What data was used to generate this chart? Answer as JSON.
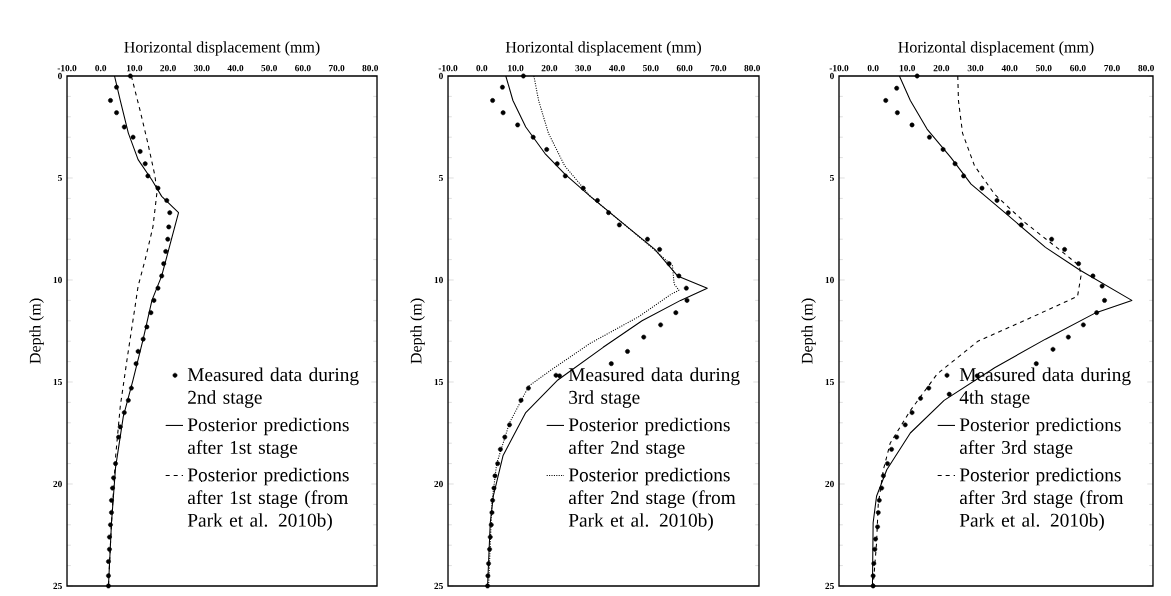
{
  "chart_data": [
    {
      "type": "scatter",
      "xlabel": "Horizontal displacement (mm)",
      "ylabel": "Depth (m)",
      "xlim": [
        -10,
        82
      ],
      "ylim": [
        25,
        0
      ],
      "xticks": [
        {
          "value": -10,
          "label": "-10.0"
        },
        {
          "value": 0,
          "label": "0.0"
        },
        {
          "value": 10,
          "label": "10.0"
        },
        {
          "value": 20,
          "label": "20.0"
        },
        {
          "value": 30,
          "label": "30.0"
        },
        {
          "value": 40,
          "label": "40.0"
        },
        {
          "value": 50,
          "label": "50.0"
        },
        {
          "value": 60,
          "label": "60.0"
        },
        {
          "value": 70,
          "label": "70.0"
        },
        {
          "value": 80,
          "label": "80.0"
        }
      ],
      "yticks": [
        0,
        5,
        10,
        15,
        20,
        25
      ],
      "legend": "bottom right",
      "series": [
        {
          "name": "Measured data during 2nd stage",
          "type": "scatter",
          "marker": "circle",
          "color": "#000000",
          "x": [
            8.8,
            4.7,
            2.9,
            4.7,
            7.0,
            9.6,
            11.7,
            13.2,
            14.0,
            17.0,
            19.6,
            20.5,
            20.2,
            19.9,
            19.3,
            18.7,
            18.1,
            17.0,
            15.8,
            14.9,
            13.7,
            12.6,
            11.1,
            10.5,
            9.1,
            8.2,
            7.0,
            5.8,
            5.3,
            4.4,
            3.8,
            3.5,
            3.2,
            3.2,
            2.9,
            2.6,
            2.6,
            2.3,
            2.3,
            2.3
          ],
          "values": [
            0,
            0.55,
            1.2,
            1.8,
            2.5,
            3.0,
            3.7,
            4.3,
            4.9,
            5.5,
            6.1,
            6.7,
            7.4,
            8.0,
            8.6,
            9.2,
            9.8,
            10.4,
            11.0,
            11.6,
            12.3,
            12.9,
            13.5,
            14.1,
            15.3,
            15.9,
            16.5,
            17.2,
            17.7,
            19.0,
            19.7,
            20.2,
            20.8,
            21.4,
            22.0,
            22.6,
            23.2,
            23.8,
            24.5,
            25
          ]
        },
        {
          "name": "Posterior predictions after 1st stage",
          "type": "line",
          "line_style": "solid",
          "color": "#000000",
          "x": [
            4.1,
            5.8,
            8.2,
            11.1,
            15.2,
            18.1,
            23.1,
            21.0,
            18.1,
            15.2,
            12.6,
            9.6,
            6.7,
            4.4,
            3.2,
            2.3
          ],
          "values": [
            0,
            1.2,
            2.8,
            4.1,
            5.1,
            5.9,
            6.7,
            8.0,
            9.8,
            11.0,
            12.9,
            14.9,
            16.7,
            19.2,
            21.9,
            25
          ]
        },
        {
          "name": "Posterior predictions after 1st stage (from Park et al. 2010b)",
          "type": "line",
          "line_style": "dashed",
          "color": "#000000",
          "x": [
            9.1,
            11.7,
            14.0,
            16.1,
            16.7,
            15.5,
            13.2,
            11.1,
            10.2,
            7.9,
            5.8,
            4.4,
            3.2,
            2.3
          ],
          "values": [
            0,
            1.7,
            3.3,
            4.9,
            5.7,
            7.4,
            9.0,
            10.3,
            11.3,
            13.8,
            16.2,
            18.7,
            21.9,
            25
          ]
        }
      ]
    },
    {
      "type": "scatter",
      "xlabel": "Horizontal displacement (mm)",
      "ylabel": "Depth (m)",
      "xlim": [
        -10,
        82
      ],
      "ylim": [
        25,
        0
      ],
      "xticks": [
        {
          "value": -10,
          "label": "-10.0"
        },
        {
          "value": 0,
          "label": "0.0"
        },
        {
          "value": 10,
          "label": "10.0"
        },
        {
          "value": 20,
          "label": "20.0"
        },
        {
          "value": 30,
          "label": "30.0"
        },
        {
          "value": 40,
          "label": "40.0"
        },
        {
          "value": 50,
          "label": "50.0"
        },
        {
          "value": 60,
          "label": "60.0"
        },
        {
          "value": 70,
          "label": "70.0"
        },
        {
          "value": 80,
          "label": "80.0"
        }
      ],
      "yticks": [
        0,
        5,
        10,
        15,
        20,
        25
      ],
      "legend": "bottom right",
      "series": [
        {
          "name": "Measured data during 3rd stage",
          "type": "scatter",
          "marker": "circle",
          "color": "#000000",
          "x": [
            12.3,
            6.1,
            3.2,
            6.3,
            10.6,
            15.2,
            19.2,
            22.3,
            24.7,
            30.0,
            34.2,
            37.5,
            40.7,
            49.0,
            52.6,
            55.4,
            58.3,
            60.5,
            60.7,
            57.4,
            52.9,
            47.9,
            43.1,
            38.3,
            23.0,
            13.8,
            11.6,
            8.2,
            6.8,
            5.5,
            4.7,
            3.9,
            3.6,
            3.2,
            3.0,
            2.8,
            2.5,
            2.3,
            2.0,
            1.8,
            1.7
          ],
          "values": [
            0,
            0.55,
            1.2,
            1.8,
            2.4,
            3.0,
            3.6,
            4.3,
            4.9,
            5.5,
            6.1,
            6.7,
            7.3,
            8.0,
            8.5,
            9.2,
            9.8,
            10.4,
            11.0,
            11.6,
            12.2,
            12.8,
            13.5,
            14.1,
            14.7,
            15.3,
            15.9,
            17.1,
            17.7,
            18.3,
            19.0,
            19.6,
            20.2,
            20.8,
            21.4,
            22.0,
            22.6,
            23.2,
            23.9,
            24.5,
            25.0
          ]
        },
        {
          "name": "Posterior predictions after 2nd stage",
          "type": "line",
          "line_style": "solid",
          "color": "#000000",
          "x": [
            7.1,
            9.2,
            13.0,
            18.7,
            24.5,
            32.1,
            41.6,
            51.2,
            57.9,
            66.7,
            58.8,
            47.4,
            35.9,
            22.5,
            13.0,
            6.3,
            3.4,
            2.5,
            1.7
          ],
          "values": [
            0,
            1.2,
            2.5,
            3.8,
            4.8,
            5.9,
            7.2,
            8.5,
            9.8,
            10.4,
            11.0,
            12.0,
            13.3,
            14.9,
            16.5,
            18.6,
            20.6,
            21.9,
            25
          ]
        },
        {
          "name": "Posterior predictions after 2nd stage (from Park et al. 2010b)",
          "type": "line",
          "line_style": "dotted",
          "color": "#000000",
          "x": [
            15.4,
            16.8,
            19.7,
            24.5,
            32.1,
            41.6,
            50.2,
            56.4,
            56.9,
            58.3,
            56.0,
            46.4,
            32.1,
            20.6,
            13.9,
            8.2,
            4.4,
            3.0,
            2.0
          ],
          "values": [
            0,
            1.2,
            2.8,
            4.4,
            5.9,
            7.2,
            8.4,
            9.3,
            10.2,
            10.5,
            10.7,
            11.8,
            13.1,
            14.4,
            15.2,
            17.0,
            19.0,
            20.9,
            25
          ]
        }
      ]
    },
    {
      "type": "scatter",
      "xlabel": "Horizontal displacement (mm)",
      "ylabel": "Depth (m)",
      "xlim": [
        -10,
        82
      ],
      "ylim": [
        25,
        0
      ],
      "xticks": [
        {
          "value": -10,
          "label": "-10.0"
        },
        {
          "value": 0,
          "label": "0.0"
        },
        {
          "value": 10,
          "label": "10.0"
        },
        {
          "value": 20,
          "label": "20.0"
        },
        {
          "value": 30,
          "label": "30.0"
        },
        {
          "value": 40,
          "label": "40.0"
        },
        {
          "value": 50,
          "label": "50.0"
        },
        {
          "value": 60,
          "label": "60.0"
        },
        {
          "value": 70,
          "label": "70.0"
        },
        {
          "value": 80,
          "label": "80.0"
        }
      ],
      "yticks": [
        0,
        5,
        10,
        15,
        20,
        25
      ],
      "legend": "bottom right",
      "series": [
        {
          "name": "Measured data during 4th stage",
          "type": "scatter",
          "marker": "circle",
          "color": "#000000",
          "x": [
            12.9,
            6.9,
            3.7,
            7.1,
            11.4,
            16.5,
            20.5,
            24.0,
            26.5,
            31.9,
            36.3,
            39.6,
            43.4,
            52.3,
            56.1,
            60.2,
            64.4,
            67.1,
            67.8,
            65.5,
            61.6,
            57.2,
            52.7,
            47.8,
            30.5,
            16.3,
            22.3,
            13.9,
            11.4,
            9.4,
            6.9,
            5.4,
            4.2,
            3.0,
            2.5,
            1.8,
            1.5,
            1.3,
            0.7,
            0.5,
            0.2,
            0,
            0
          ],
          "values": [
            0,
            0.6,
            1.2,
            1.8,
            2.4,
            3.0,
            3.6,
            4.3,
            4.9,
            5.5,
            6.1,
            6.7,
            7.3,
            8.0,
            8.5,
            9.2,
            9.8,
            10.3,
            11.0,
            11.6,
            12.2,
            12.8,
            13.4,
            14.1,
            14.7,
            15.3,
            15.6,
            15.8,
            16.5,
            17.1,
            17.7,
            18.3,
            19.0,
            19.6,
            20.2,
            20.8,
            21.4,
            22.1,
            22.7,
            23.2,
            23.9,
            24.5,
            25.0
          ]
        },
        {
          "name": "Posterior predictions after 3rd stage",
          "type": "line",
          "line_style": "solid",
          "color": "#000000",
          "x": [
            7.7,
            10.9,
            15.8,
            22.8,
            28.7,
            38.6,
            50.5,
            60.4,
            75.8,
            65.3,
            50.5,
            35.6,
            20.8,
            10.9,
            4.0,
            1.0,
            0,
            -0.2
          ],
          "values": [
            0,
            1.2,
            2.6,
            4.0,
            5.3,
            6.7,
            8.4,
            9.5,
            11.0,
            11.6,
            12.9,
            14.3,
            15.9,
            17.5,
            19.3,
            20.6,
            21.9,
            25
          ]
        },
        {
          "name": "Posterior predictions after 3rd stage (from Park et al. 2010b)",
          "type": "line",
          "line_style": "dashed",
          "color": "#000000",
          "x": [
            24.8,
            25.0,
            26.2,
            29.7,
            35.6,
            44.6,
            54.5,
            60.4,
            60.9,
            59.9,
            45.5,
            30.7,
            18.8,
            10.9,
            5.0,
            3.0,
            1.5,
            1.0,
            0
          ],
          "values": [
            0,
            1.2,
            2.8,
            4.4,
            5.8,
            7.2,
            8.5,
            9.3,
            9.8,
            10.8,
            11.9,
            13.0,
            14.6,
            16.4,
            18.0,
            19.3,
            21.0,
            22.9,
            25
          ]
        }
      ]
    }
  ]
}
